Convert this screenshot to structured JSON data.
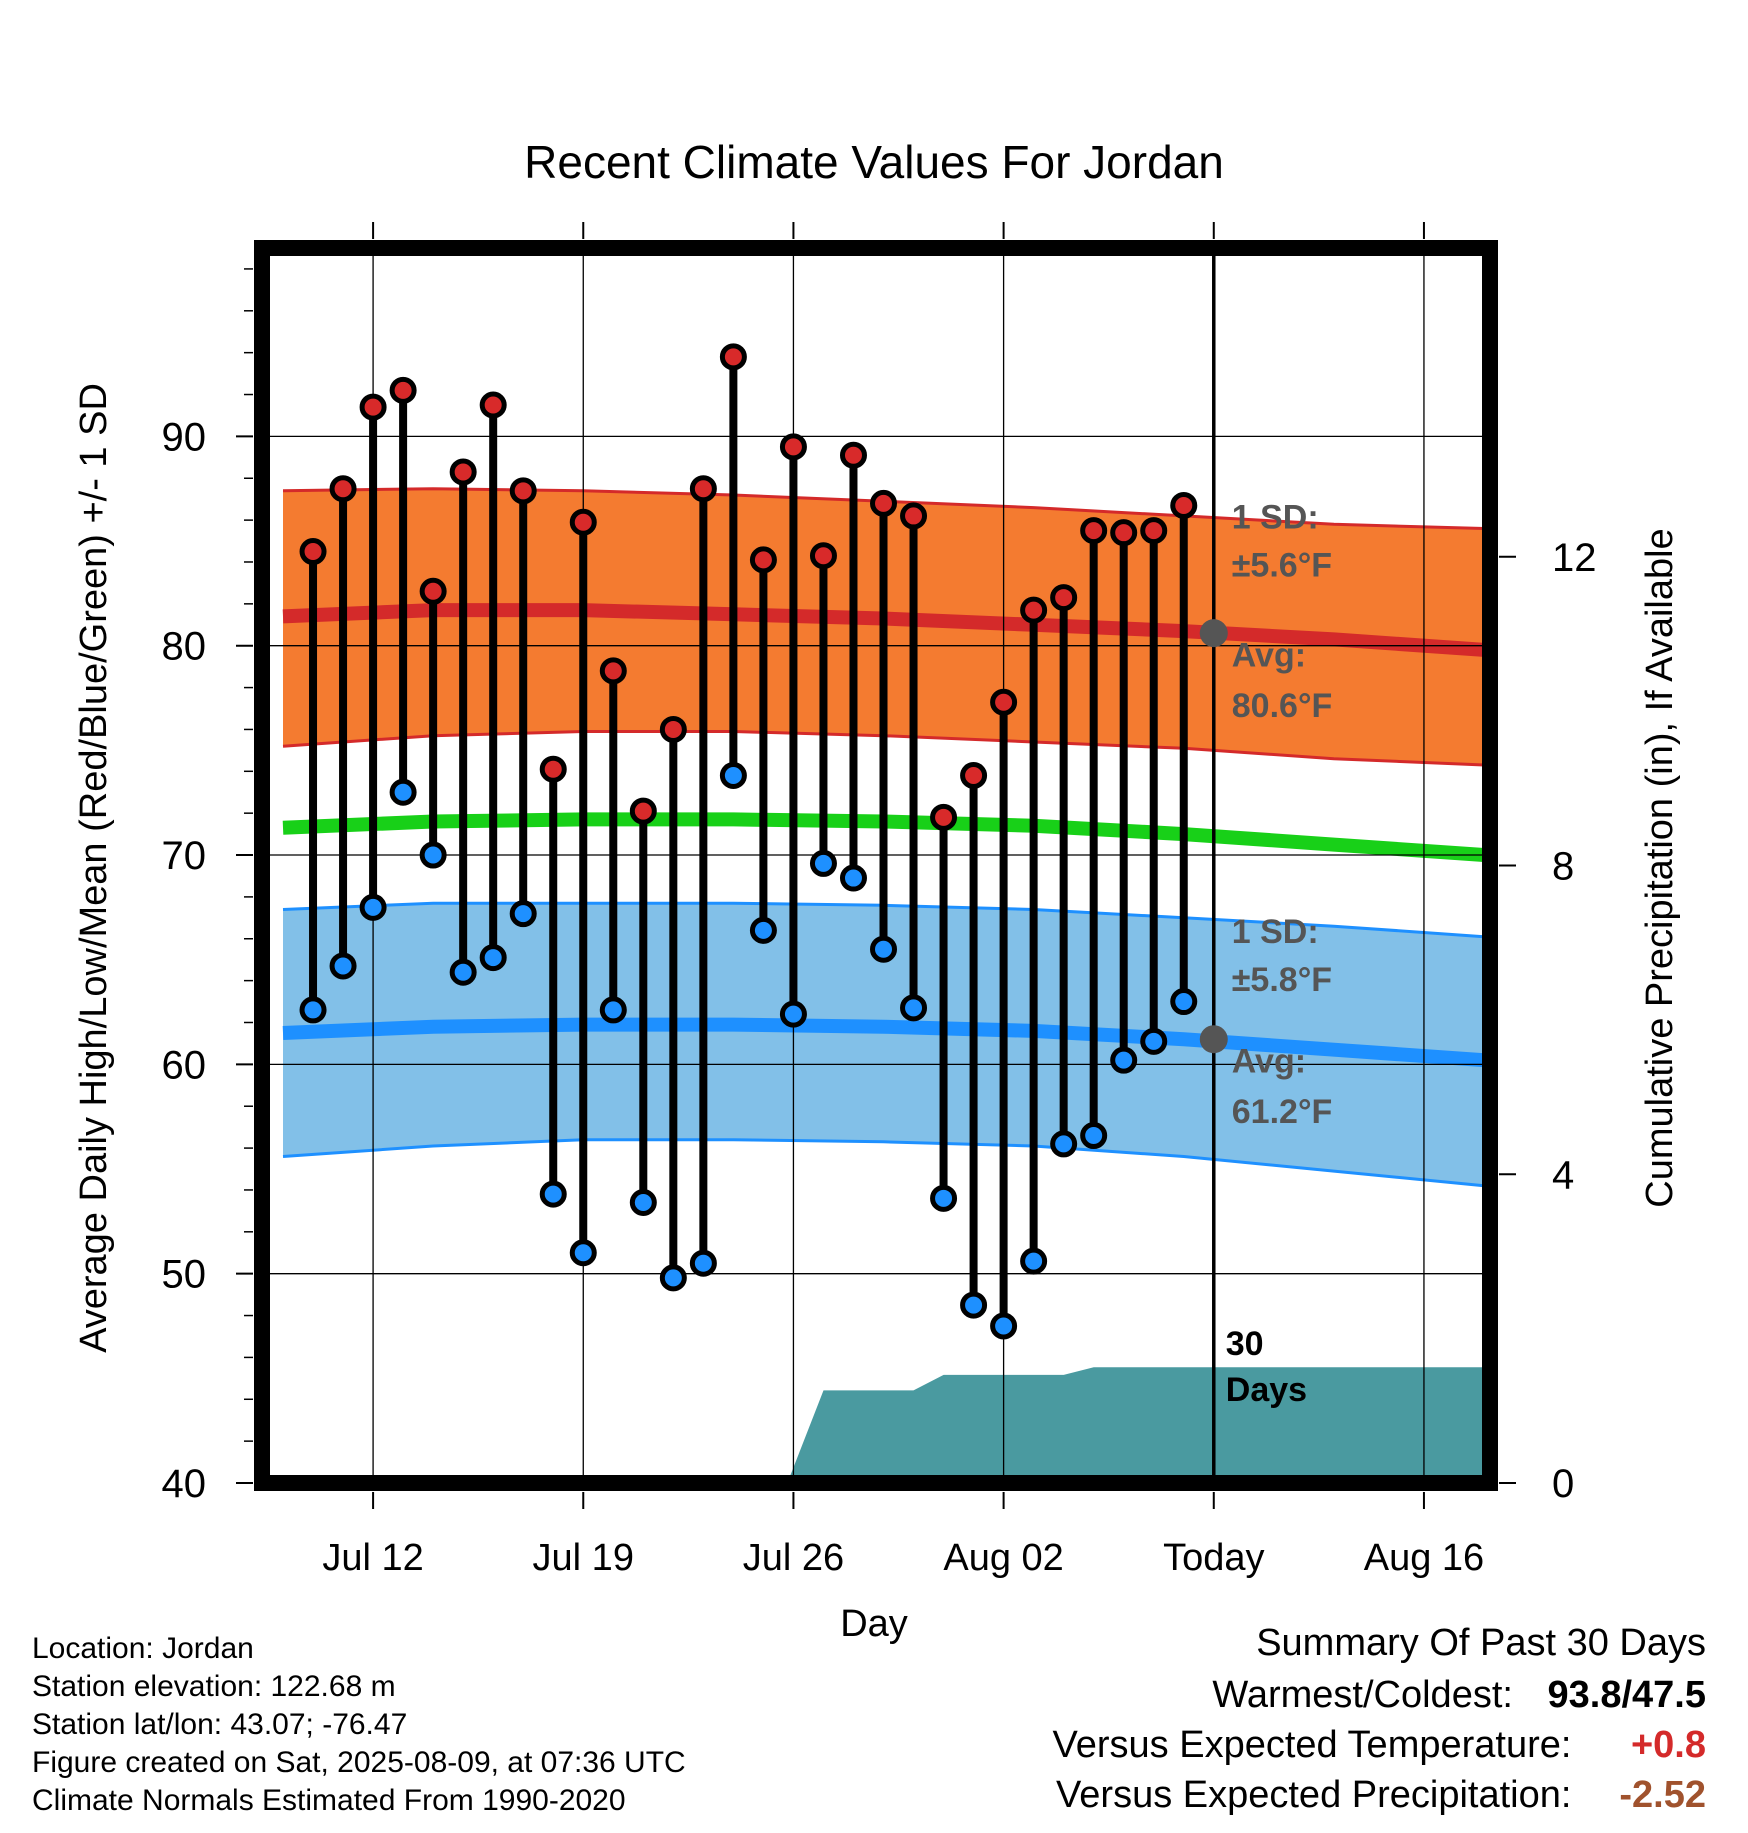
{
  "chart_data": {
    "type": "scatter",
    "title": "Recent Climate Values For Jordan",
    "xlabel": "Day",
    "ylabel_left": "Average Daily High/Low/Mean (Red/Blue/Green) +/- 1 SD",
    "ylabel_right": "Cumulative Precipitation (in), If Available",
    "ylim_left": [
      40,
      99
    ],
    "ylim_right": [
      0,
      16
    ],
    "y_ticks_left": [
      40,
      50,
      60,
      70,
      80,
      90
    ],
    "y_ticks_right": [
      0,
      4,
      8,
      12
    ],
    "x_tick_labels": [
      "Jul 12",
      "Jul 19",
      "Jul 26",
      "Aug 02",
      "Today",
      "Aug 16"
    ],
    "x_tick_positions": [
      3,
      10,
      17,
      24,
      31,
      38
    ],
    "x_range": [
      -0.7,
      40.2
    ],
    "today_index": 31,
    "grid": true,
    "days": [
      1,
      2,
      3,
      4,
      5,
      6,
      7,
      8,
      9,
      10,
      11,
      12,
      13,
      14,
      15,
      16,
      17,
      18,
      19,
      20,
      21,
      22,
      23,
      24,
      25,
      26,
      27,
      28,
      29,
      30
    ],
    "highs": [
      84.5,
      87.5,
      91.4,
      92.2,
      82.6,
      88.3,
      91.5,
      87.4,
      74.1,
      85.9,
      78.8,
      72.1,
      76,
      87.5,
      93.8,
      84.1,
      89.5,
      84.3,
      89.1,
      86.8,
      86.2,
      71.8,
      73.8,
      77.3,
      81.7,
      82.3,
      85.5,
      85.4,
      85.5,
      86.7
    ],
    "lows": [
      62.6,
      64.7,
      67.5,
      73,
      70,
      64.4,
      65.1,
      67.2,
      53.8,
      51,
      62.6,
      53.4,
      49.8,
      50.5,
      73.8,
      66.4,
      62.4,
      69.6,
      68.9,
      65.5,
      62.7,
      53.6,
      48.5,
      47.5,
      50.6,
      56.2,
      56.6,
      60.2,
      61.1,
      63
    ],
    "normal_x": [
      0,
      5,
      10,
      15,
      20,
      25,
      30,
      35,
      40
    ],
    "normal_high": [
      81.4,
      81.7,
      81.7,
      81.5,
      81.3,
      81,
      80.7,
      80.3,
      79.8
    ],
    "high_sd_upper": [
      87.4,
      87.5,
      87.4,
      87.2,
      86.9,
      86.6,
      86.2,
      85.8,
      85.6
    ],
    "high_sd_lower": [
      75.2,
      75.7,
      75.9,
      75.9,
      75.7,
      75.4,
      75.1,
      74.6,
      74.3
    ],
    "normal_mean": [
      71.3,
      71.6,
      71.7,
      71.7,
      71.6,
      71.4,
      71,
      70.5,
      70
    ],
    "normal_low": [
      61.5,
      61.8,
      61.9,
      61.9,
      61.8,
      61.6,
      61.2,
      60.7,
      60.2
    ],
    "low_sd_upper": [
      67.4,
      67.7,
      67.7,
      67.7,
      67.6,
      67.4,
      67,
      66.6,
      66.1
    ],
    "low_sd_lower": [
      55.6,
      56.1,
      56.4,
      56.4,
      56.3,
      56.1,
      55.6,
      54.9,
      54.2
    ],
    "precip_x": [
      6,
      7,
      9,
      10,
      16.9,
      17,
      18,
      21,
      22,
      26,
      27,
      40.2
    ],
    "precip_cum": [
      0,
      0.03,
      0.1,
      0.1,
      0.1,
      0.2,
      1.2,
      1.2,
      1.4,
      1.4,
      1.5,
      1.5
    ],
    "precip_label": "30 Days",
    "colors": {
      "high_band": "#f47b30",
      "high_line": "#d42a2a",
      "low_band": "#82c0e8",
      "low_line": "#1e90ff",
      "mean_line": "#18d018",
      "high_dot": "#d82a2a",
      "low_dot": "#1e90ff",
      "precip": "#4a9aa0",
      "annotation": "#555555"
    },
    "annotations": {
      "high_sd_label": "1 SD:",
      "high_sd_value": "±5.6°F",
      "high_avg_label": "Avg:",
      "high_avg_value": "80.6°F",
      "high_avg": 80.6,
      "low_sd_label": "1 SD:",
      "low_sd_value": "±5.8°F",
      "low_avg_label": "Avg:",
      "low_avg_value": "61.2°F",
      "low_avg": 61.2
    }
  },
  "metadata": {
    "location": "Location: Jordan",
    "elevation": "Station elevation: 122.68 m",
    "latlon": "Station lat/lon: 43.07; -76.47",
    "created": "Figure created on Sat, 2025-08-09, at 07:36 UTC",
    "normals": "Climate Normals Estimated From 1990-2020"
  },
  "summary": {
    "title": "Summary Of Past 30 Days",
    "warm_cold_label": "Warmest/Coldest:",
    "warm_cold_value": "93.8/47.5",
    "temp_label": "Versus Expected Temperature:",
    "temp_value": "+0.8",
    "temp_color": "#d42a2a",
    "precip_label": "Versus Expected Precipitation:",
    "precip_value": "-2.52",
    "precip_color": "#a0522d"
  }
}
